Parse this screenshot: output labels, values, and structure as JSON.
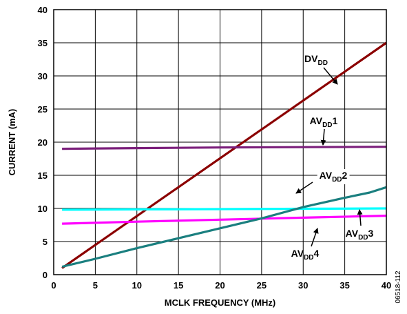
{
  "chart_data": {
    "type": "line",
    "title": "",
    "xlabel": "MCLK FREQUENCY (MHz)",
    "ylabel": "CURRENT (mA)",
    "xlim": [
      0,
      40
    ],
    "ylim": [
      0,
      40
    ],
    "xticks": [
      0,
      5,
      10,
      15,
      20,
      25,
      30,
      35,
      40
    ],
    "yticks": [
      0,
      5,
      10,
      15,
      20,
      25,
      30,
      35,
      40
    ],
    "grid": true,
    "figure_id": "06518-112",
    "series": [
      {
        "name": "DVDD",
        "label_main": "DV",
        "label_sub": "DD",
        "label_suffix": "",
        "color": "#8b0000",
        "x": [
          1,
          40
        ],
        "y": [
          1.0,
          35.0
        ]
      },
      {
        "name": "AVDD1",
        "label_main": "AV",
        "label_sub": "DD",
        "label_suffix": "1",
        "color": "#7b1f7b",
        "x": [
          1,
          10,
          20,
          30,
          40
        ],
        "y": [
          19.0,
          19.1,
          19.2,
          19.25,
          19.3
        ]
      },
      {
        "name": "AVDD2",
        "label_main": "AV",
        "label_sub": "DD",
        "label_suffix": "2",
        "color": "#00ffff",
        "x": [
          1,
          10,
          20,
          30,
          40
        ],
        "y": [
          9.8,
          9.85,
          9.9,
          9.95,
          10.0
        ]
      },
      {
        "name": "AVDD3",
        "label_main": "AV",
        "label_sub": "DD",
        "label_suffix": "3",
        "color": "#ff00ff",
        "x": [
          1,
          10,
          20,
          30,
          40
        ],
        "y": [
          7.7,
          8.0,
          8.3,
          8.6,
          8.9
        ]
      },
      {
        "name": "AVDD4",
        "label_main": "AV",
        "label_sub": "DD",
        "label_suffix": "4",
        "color": "#1a7f7f",
        "x": [
          1,
          5,
          10,
          15,
          20,
          25,
          30,
          35,
          38,
          40
        ],
        "y": [
          1.2,
          2.4,
          4.0,
          5.5,
          7.0,
          8.5,
          10.2,
          11.6,
          12.4,
          13.2
        ]
      }
    ]
  }
}
